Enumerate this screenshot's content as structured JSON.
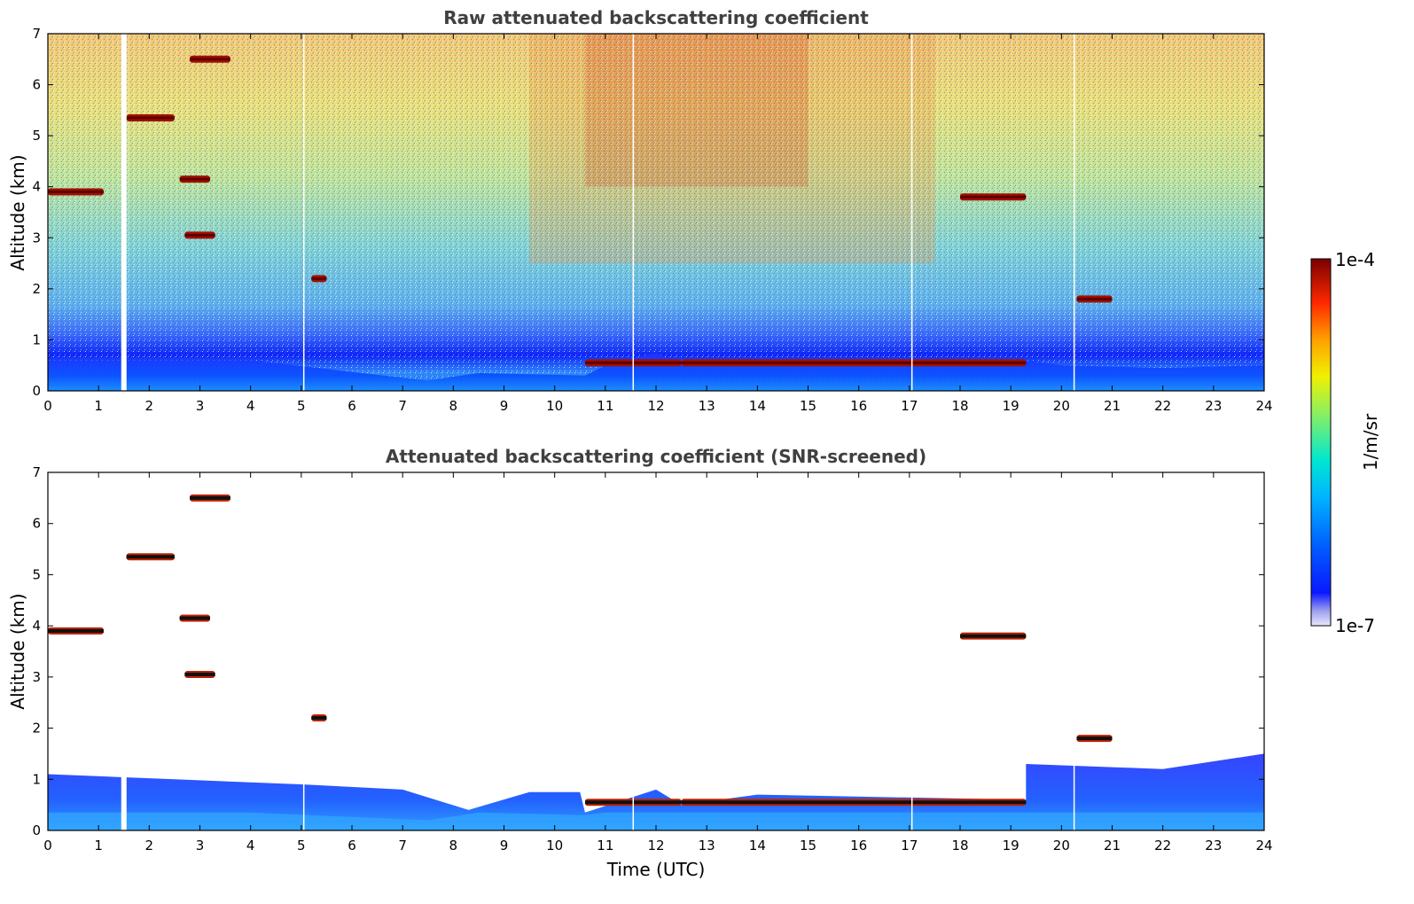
{
  "chart_data": [
    {
      "type": "heatmap",
      "panel": "raw",
      "title": "Raw attenuated backscattering coefficient",
      "xlabel": "",
      "ylabel": "Altitude (km)",
      "xlim": [
        0,
        24
      ],
      "ylim": [
        0,
        7
      ],
      "xticks": [
        0,
        1,
        2,
        3,
        4,
        5,
        6,
        7,
        8,
        9,
        10,
        11,
        12,
        13,
        14,
        15,
        16,
        17,
        18,
        19,
        20,
        21,
        22,
        23,
        24
      ],
      "yticks": [
        0,
        1,
        2,
        3,
        4,
        5,
        6,
        7
      ],
      "data_gaps_hours": [
        1.5,
        5.05,
        11.55,
        17.05,
        20.25
      ],
      "boundary_layer_top_km": [
        [
          0,
          0.6
        ],
        [
          4,
          0.6
        ],
        [
          7.5,
          0.2
        ],
        [
          8.5,
          0.35
        ],
        [
          10.6,
          0.3
        ],
        [
          11,
          0.5
        ],
        [
          12,
          0.75
        ],
        [
          12.5,
          0.5
        ],
        [
          14,
          0.65
        ],
        [
          16,
          0.6
        ],
        [
          18,
          0.55
        ],
        [
          19.3,
          0.6
        ],
        [
          20,
          0.5
        ],
        [
          22,
          0.45
        ],
        [
          24,
          0.5
        ]
      ],
      "cloud_layers": [
        {
          "t_start": 0.0,
          "t_end": 1.1,
          "altitude_km": 3.9
        },
        {
          "t_start": 1.55,
          "t_end": 2.5,
          "altitude_km": 5.35
        },
        {
          "t_start": 2.6,
          "t_end": 3.2,
          "altitude_km": 4.15
        },
        {
          "t_start": 2.7,
          "t_end": 3.3,
          "altitude_km": 3.05
        },
        {
          "t_start": 2.8,
          "t_end": 3.6,
          "altitude_km": 6.5
        },
        {
          "t_start": 5.2,
          "t_end": 5.5,
          "altitude_km": 2.2
        },
        {
          "t_start": 10.6,
          "t_end": 12.5,
          "altitude_km": 0.55
        },
        {
          "t_start": 12.5,
          "t_end": 19.3,
          "altitude_km": 0.55
        },
        {
          "t_start": 18.0,
          "t_end": 19.3,
          "altitude_km": 3.8
        },
        {
          "t_start": 20.3,
          "t_end": 21.0,
          "altitude_km": 1.8
        }
      ]
    },
    {
      "type": "heatmap",
      "panel": "screened",
      "title": "Attenuated backscattering coefficient (SNR-screened)",
      "xlabel": "Time (UTC)",
      "ylabel": "Altitude (km)",
      "xlim": [
        0,
        24
      ],
      "ylim": [
        0,
        7
      ],
      "xticks": [
        0,
        1,
        2,
        3,
        4,
        5,
        6,
        7,
        8,
        9,
        10,
        11,
        12,
        13,
        14,
        15,
        16,
        17,
        18,
        19,
        20,
        21,
        22,
        23,
        24
      ],
      "yticks": [
        0,
        1,
        2,
        3,
        4,
        5,
        6,
        7
      ],
      "signal_top_km": [
        [
          0,
          1.1
        ],
        [
          2.5,
          1.0
        ],
        [
          5,
          0.9
        ],
        [
          7,
          0.8
        ],
        [
          8.3,
          0.4
        ],
        [
          9.5,
          0.75
        ],
        [
          10.5,
          0.75
        ],
        [
          10.6,
          0.35
        ],
        [
          12,
          0.8
        ],
        [
          12.5,
          0.5
        ],
        [
          14,
          0.7
        ],
        [
          19.3,
          0.6
        ],
        [
          19.3,
          1.3
        ],
        [
          22,
          1.2
        ],
        [
          24,
          1.5
        ]
      ]
    }
  ],
  "colorbar": {
    "label": "1/m/sr",
    "max_label": "1e-4",
    "min_label": "1e-7",
    "scale": "log",
    "range": [
      1e-07,
      0.0001
    ]
  }
}
